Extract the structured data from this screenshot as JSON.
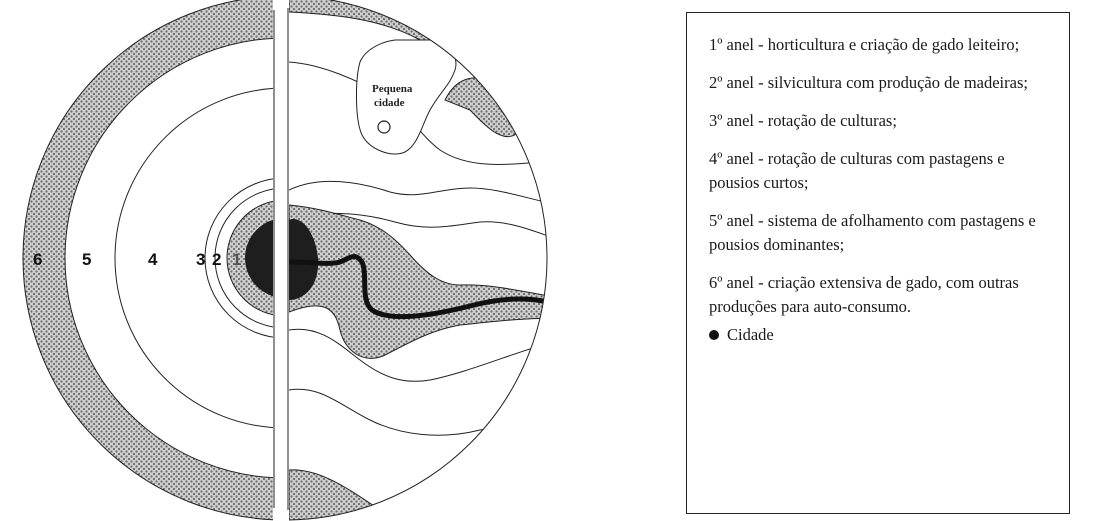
{
  "diagram": {
    "ring_numbers": [
      "6",
      "5",
      "4",
      "3",
      "2",
      "1"
    ],
    "town_label_line1": "Pequena",
    "town_label_line2": "cidade",
    "colors": {
      "stipple": "#9a9a9a",
      "city": "#111111",
      "line": "#222222"
    }
  },
  "legend": {
    "items": [
      "1º anel - horticultura e criação de gado leiteiro;",
      "2º anel - silvicultura com produção de madeiras;",
      "3º anel - rotação de culturas;",
      "4º anel - rotação de culturas com pastagens e pousios curtos;",
      "5º anel - sistema de afolhamento com pastagens e pousios dominantes;",
      "6º anel - criação extensiva de gado, com outras produções para auto-consumo."
    ],
    "city_label": "Cidade"
  }
}
